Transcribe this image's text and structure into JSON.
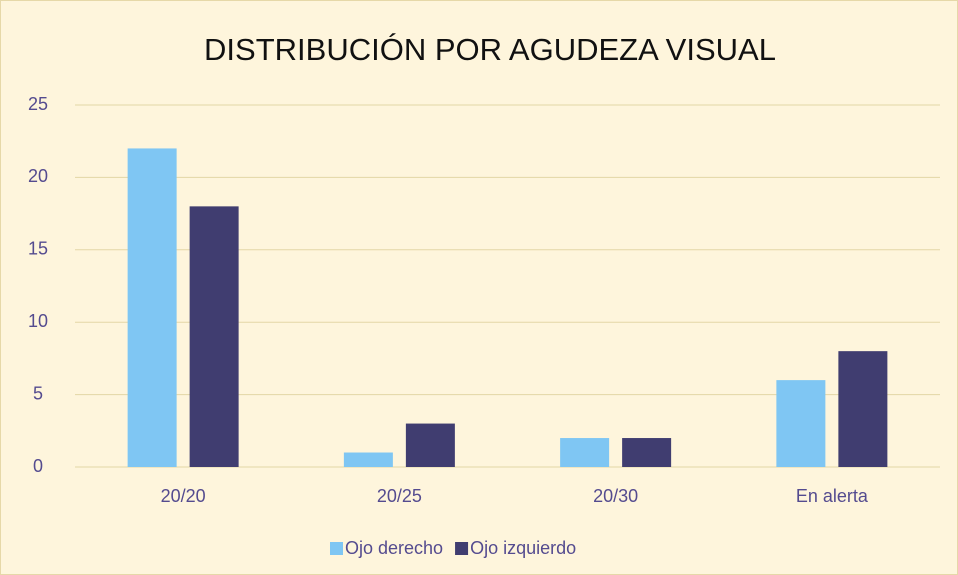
{
  "chart_data": {
    "type": "bar",
    "title": "DISTRIBUCIÓN POR AGUDEZA VISUAL",
    "categories": [
      "20/20",
      "20/25",
      "20/30",
      "En alerta"
    ],
    "series": [
      {
        "name": "Ojo derecho",
        "color": "#7fc6f3",
        "values": [
          22,
          1,
          2,
          6
        ]
      },
      {
        "name": "Ojo izquierdo",
        "color": "#403d70",
        "values": [
          18,
          3,
          2,
          8
        ]
      }
    ],
    "ylim": [
      0,
      25
    ],
    "yticks": [
      0,
      5,
      10,
      15,
      20,
      25
    ],
    "grid": true,
    "legend": "bottom"
  }
}
